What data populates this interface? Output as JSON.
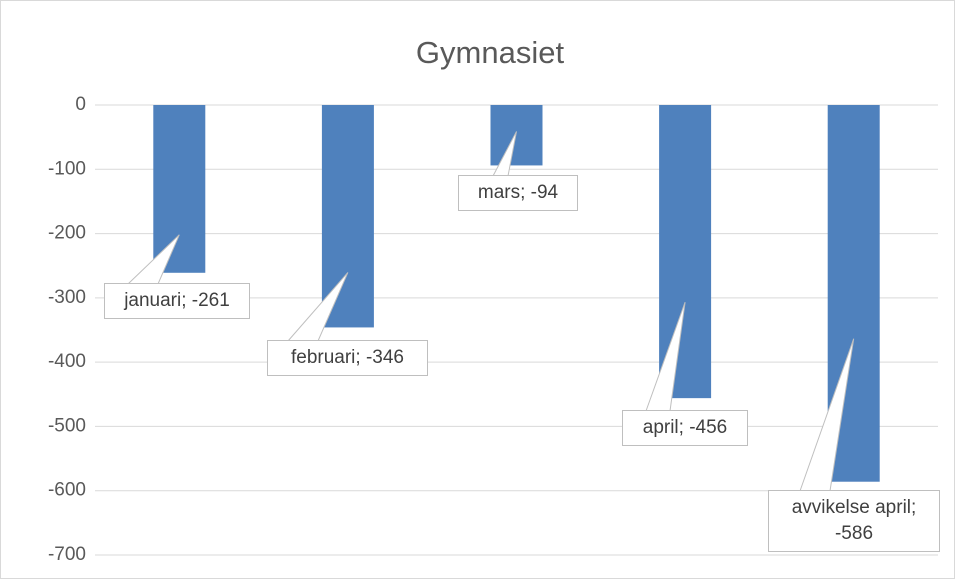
{
  "chart_data": {
    "type": "bar",
    "title": "Gymnasiet",
    "values": [
      -261,
      -346,
      -94,
      -456,
      -586
    ],
    "value_labels": [
      "januari; -261",
      "februari; -346",
      "mars; -94",
      "april; -456",
      "avvikelse april; -586"
    ],
    "color": "#4f81bd",
    "ylim": [
      -700,
      0
    ],
    "yticks": [
      0,
      -100,
      -200,
      -300,
      -400,
      -500,
      -600,
      -700
    ],
    "grid": true
  }
}
